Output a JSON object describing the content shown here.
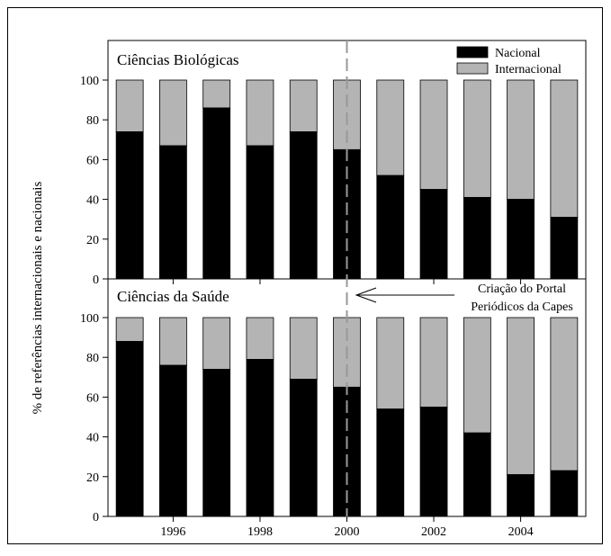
{
  "chart_data": {
    "type": "bar",
    "stacked": true,
    "ylabel": "% de referências internacionais e nacionais",
    "x_tick_labels": [
      "1996",
      "1998",
      "2000",
      "2002",
      "2004"
    ],
    "y_ticks": [
      "0",
      "20",
      "40",
      "60",
      "80",
      "100"
    ],
    "ylim": [
      0,
      100
    ],
    "categories": [
      1995,
      1996,
      1997,
      1998,
      1999,
      2000,
      2001,
      2002,
      2003,
      2004,
      2005
    ],
    "legend": {
      "placement": "top-right",
      "entries": [
        {
          "name": "Nacional",
          "color": "#000000"
        },
        {
          "name": "Internacional",
          "color": "#b4b4b4"
        }
      ]
    },
    "annotation": {
      "line1": "Criação do Portal",
      "line2": "Periódicos da Capes",
      "marker_x": 2000
    },
    "panels": [
      {
        "title": "Ciências Biológicas",
        "series": [
          {
            "name": "Nacional",
            "values": [
              74,
              67,
              86,
              67,
              74,
              65,
              52,
              45,
              41,
              40,
              31
            ]
          },
          {
            "name": "Internacional",
            "values": [
              26,
              33,
              14,
              33,
              26,
              35,
              48,
              55,
              59,
              60,
              69
            ]
          }
        ]
      },
      {
        "title": "Ciências da Saúde",
        "series": [
          {
            "name": "Nacional",
            "values": [
              88,
              76,
              74,
              79,
              69,
              65,
              54,
              55,
              42,
              21,
              23
            ]
          },
          {
            "name": "Internacional",
            "values": [
              12,
              24,
              26,
              21,
              31,
              35,
              46,
              45,
              58,
              79,
              77
            ]
          }
        ]
      }
    ],
    "colors": {
      "nacional": "#000000",
      "internacional": "#b4b4b4",
      "divider": "#999999"
    }
  }
}
